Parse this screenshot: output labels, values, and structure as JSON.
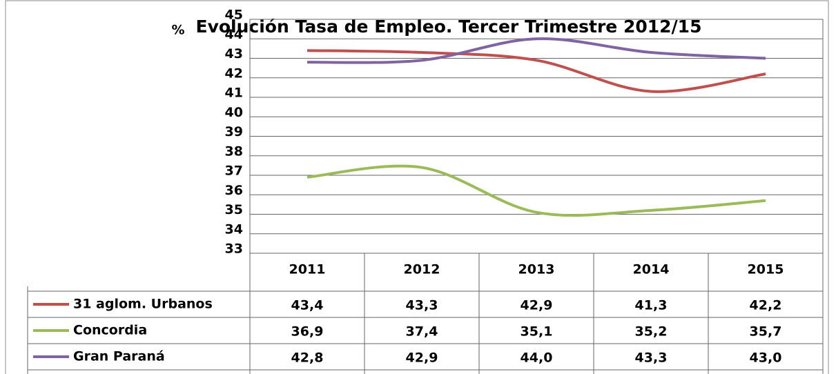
{
  "chart_data": {
    "type": "line",
    "title": "Evolución Tasa de Empleo. Tercer Trimestre 2012/15",
    "y_label": "%",
    "categories": [
      "2011",
      "2012",
      "2013",
      "2014",
      "2015"
    ],
    "series": [
      {
        "name": "31 aglom. Urbanos",
        "color": "#c0504d",
        "values": [
          43.4,
          43.3,
          42.9,
          41.3,
          42.2
        ],
        "value_labels": [
          "43,4",
          "43,3",
          "42,9",
          "41,3",
          "42,2"
        ]
      },
      {
        "name": "Concordia",
        "color": "#9bbb59",
        "values": [
          36.9,
          37.4,
          35.1,
          35.2,
          35.7
        ],
        "value_labels": [
          "36,9",
          "37,4",
          "35,1",
          "35,2",
          "35,7"
        ]
      },
      {
        "name": "Gran Paraná",
        "color": "#8064a2",
        "values": [
          42.8,
          42.9,
          44.0,
          43.3,
          43.0
        ],
        "value_labels": [
          "42,8",
          "42,9",
          "44,0",
          "43,3",
          "43,0"
        ]
      }
    ],
    "ylim": [
      33,
      45
    ],
    "yticks": [
      33,
      34,
      35,
      36,
      37,
      38,
      39,
      40,
      41,
      42,
      43,
      44,
      45
    ],
    "grid": true,
    "smooth": true
  }
}
